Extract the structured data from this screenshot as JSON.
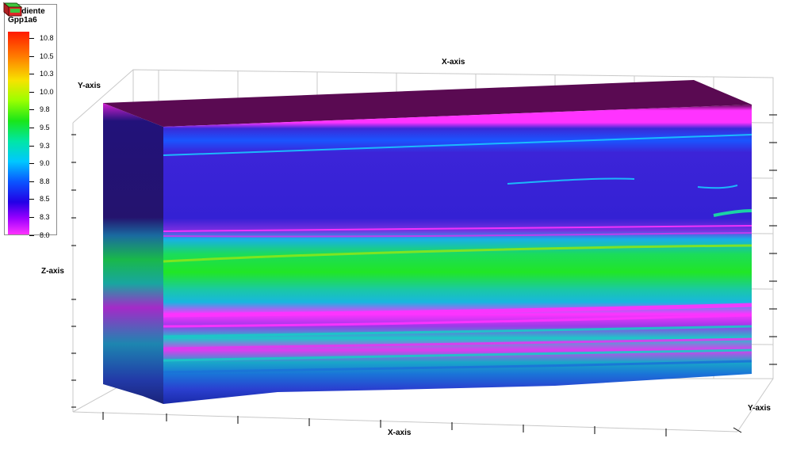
{
  "legend": {
    "title_line1": "Gradiente",
    "title_line2": "Gpp1a6",
    "ticks": [
      "10.8",
      "10.5",
      "10.3",
      "10.0",
      "9.8",
      "9.5",
      "9.3",
      "9.0",
      "8.8",
      "8.5",
      "8.3",
      "8.0"
    ]
  },
  "axes": {
    "x_top": "X-axis",
    "x_bottom": "X-axis",
    "y_left": "Y-axis",
    "y_right": "Y-axis",
    "z_left": "Z-axis"
  },
  "colors": {
    "top_face": "#5a0a52",
    "magenta": "#ff33ff",
    "blue": "#2a1fd9",
    "dark_blue": "#22127a",
    "green": "#1de02a",
    "cyan": "#19c9c9",
    "grid": "#c8c8c8"
  },
  "icons": {
    "nav_cube": "navigation-cube-icon"
  }
}
